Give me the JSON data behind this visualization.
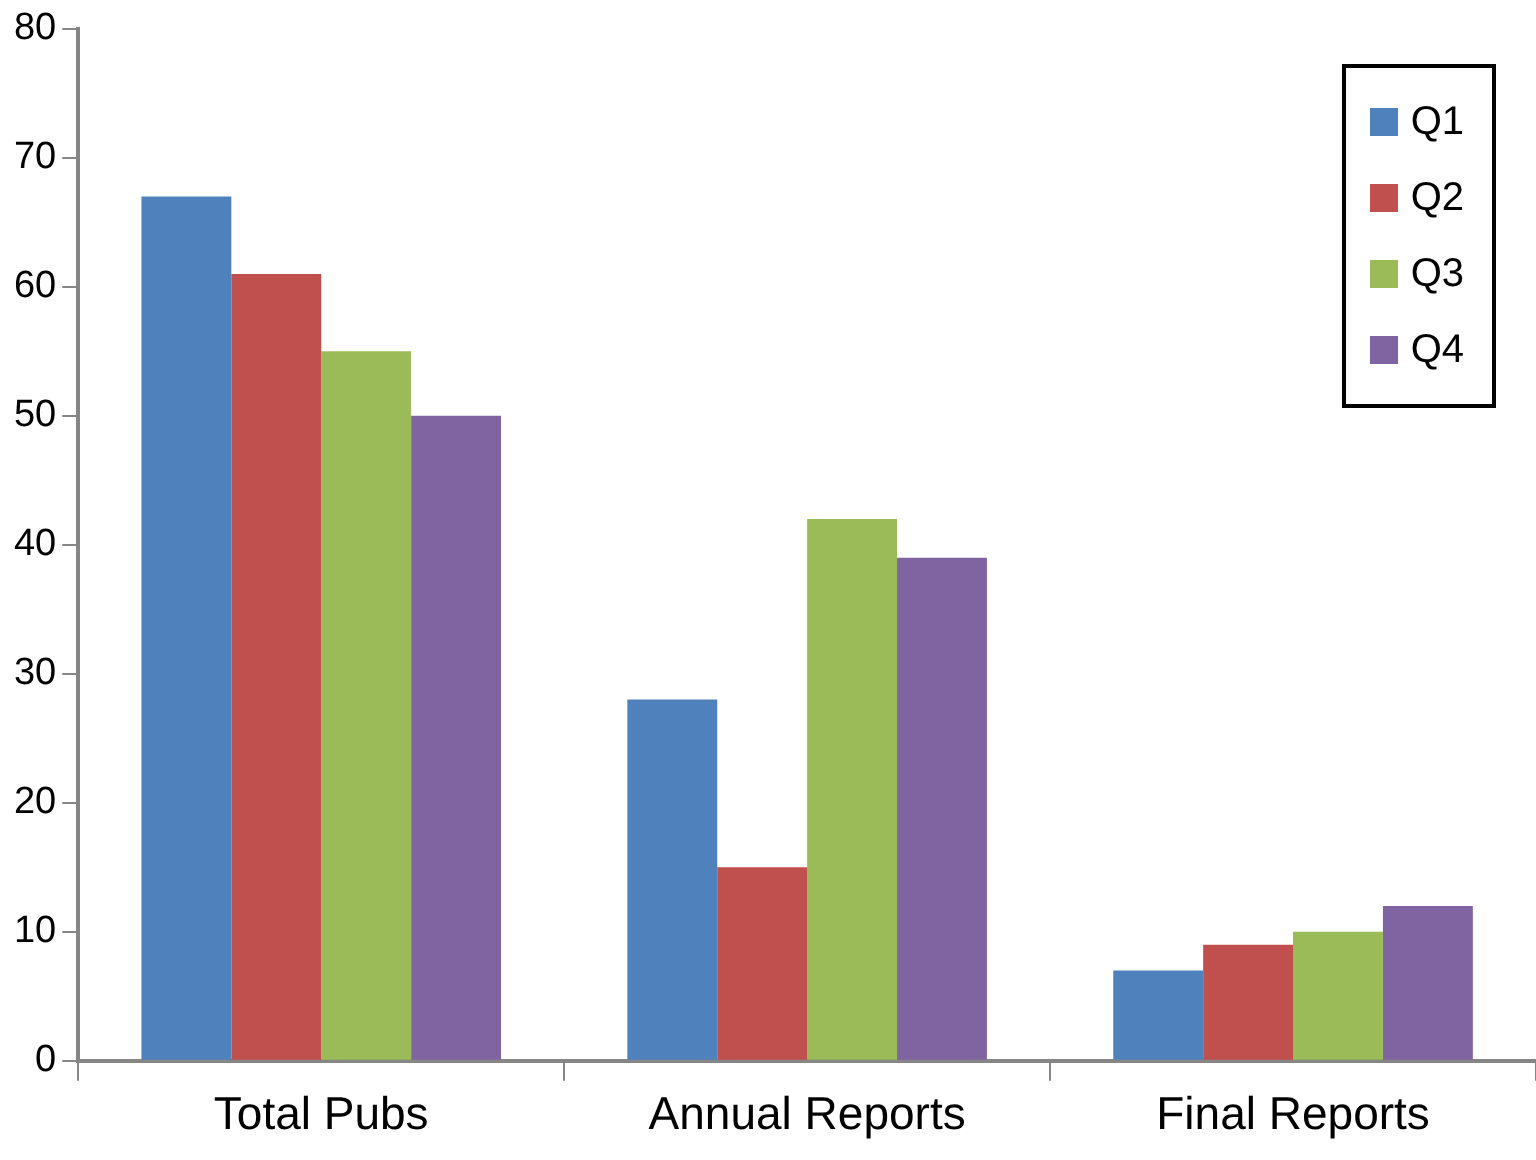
{
  "chart_data": {
    "type": "bar",
    "categories": [
      "Total Pubs",
      "Annual Reports",
      "Final Reports"
    ],
    "series": [
      {
        "name": "Q1",
        "color": "#4f81bd",
        "values": [
          67,
          28,
          7
        ]
      },
      {
        "name": "Q2",
        "color": "#c0504d",
        "values": [
          61,
          15,
          9
        ]
      },
      {
        "name": "Q3",
        "color": "#9bbb59",
        "values": [
          55,
          42,
          10
        ]
      },
      {
        "name": "Q4",
        "color": "#8064a2",
        "values": [
          50,
          39,
          12
        ]
      }
    ],
    "ylim": [
      0,
      80
    ],
    "yticks": [
      0,
      10,
      20,
      30,
      40,
      50,
      60,
      70,
      80
    ],
    "grid": false,
    "legend": "top right"
  }
}
